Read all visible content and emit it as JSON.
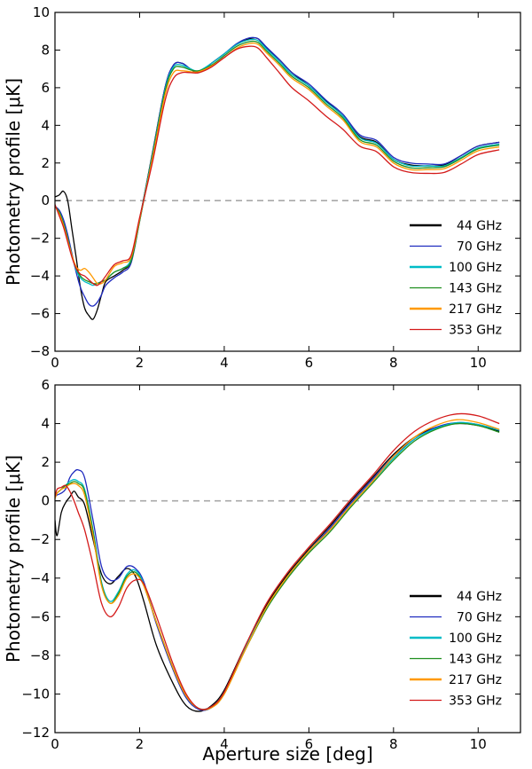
{
  "chart_data": [
    {
      "type": "line",
      "title": "",
      "xlabel": "",
      "ylabel": "Photometry profile [μK]",
      "xlim": [
        0,
        11
      ],
      "ylim": [
        -8,
        10
      ],
      "xticks": [
        "0",
        "2",
        "4",
        "6",
        "8",
        "10"
      ],
      "yticks": [
        "−8",
        "−6",
        "−4",
        "−2",
        "0",
        "2",
        "4",
        "6",
        "8",
        "10"
      ],
      "reference_line": {
        "y": 0,
        "style": "dashed"
      },
      "legend_position": "lower-right",
      "series": [
        {
          "name": "44 GHz",
          "color": "#000000",
          "x": [
            0,
            0.1,
            0.2,
            0.3,
            0.4,
            0.5,
            0.6,
            0.7,
            0.8,
            0.9,
            1.0,
            1.1,
            1.2,
            1.4,
            1.6,
            1.8,
            2.0,
            2.3,
            2.6,
            2.8,
            3.0,
            3.2,
            3.4,
            3.7,
            4.0,
            4.3,
            4.6,
            4.8,
            5.0,
            5.3,
            5.6,
            6.0,
            6.4,
            6.8,
            7.2,
            7.6,
            8.0,
            8.4,
            8.8,
            9.2,
            9.6,
            10.0,
            10.5
          ],
          "y": [
            0.2,
            0.3,
            0.5,
            0.0,
            -1.5,
            -3.0,
            -4.6,
            -5.7,
            -6.1,
            -6.3,
            -5.8,
            -5.0,
            -4.3,
            -4.0,
            -3.7,
            -3.2,
            -1.0,
            2.5,
            6.0,
            7.2,
            7.3,
            7.0,
            6.8,
            7.3,
            7.8,
            8.3,
            8.6,
            8.6,
            8.1,
            7.5,
            6.8,
            6.1,
            5.3,
            4.5,
            3.4,
            3.1,
            2.2,
            1.9,
            1.85,
            1.9,
            2.4,
            2.9,
            3.1
          ]
        },
        {
          "name": "70 GHz",
          "color": "#1f2bbf",
          "x": [
            0,
            0.1,
            0.2,
            0.3,
            0.4,
            0.5,
            0.6,
            0.7,
            0.8,
            0.9,
            1.0,
            1.1,
            1.2,
            1.4,
            1.6,
            1.8,
            2.0,
            2.3,
            2.6,
            2.8,
            3.0,
            3.2,
            3.4,
            3.7,
            4.0,
            4.3,
            4.6,
            4.8,
            5.0,
            5.3,
            5.6,
            6.0,
            6.4,
            6.8,
            7.2,
            7.6,
            8.0,
            8.4,
            8.8,
            9.2,
            9.6,
            10.0,
            10.5
          ],
          "y": [
            -0.3,
            -0.5,
            -1.0,
            -1.8,
            -2.8,
            -3.8,
            -4.6,
            -5.1,
            -5.5,
            -5.6,
            -5.4,
            -5.0,
            -4.5,
            -4.1,
            -3.8,
            -3.3,
            -1.1,
            2.4,
            6.0,
            7.2,
            7.3,
            7.0,
            6.85,
            7.3,
            7.8,
            8.35,
            8.65,
            8.6,
            8.15,
            7.5,
            6.8,
            6.2,
            5.35,
            4.6,
            3.5,
            3.2,
            2.3,
            2.0,
            1.95,
            1.95,
            2.4,
            2.9,
            3.1
          ]
        },
        {
          "name": "100 GHz",
          "color": "#00bcc7",
          "x": [
            0,
            0.1,
            0.2,
            0.3,
            0.4,
            0.5,
            0.6,
            0.7,
            0.8,
            0.9,
            1.0,
            1.1,
            1.2,
            1.4,
            1.6,
            1.8,
            2.0,
            2.3,
            2.6,
            2.8,
            3.0,
            3.2,
            3.4,
            3.7,
            4.0,
            4.3,
            4.6,
            4.8,
            5.0,
            5.3,
            5.6,
            6.0,
            6.4,
            6.8,
            7.2,
            7.6,
            8.0,
            8.4,
            8.8,
            9.2,
            9.6,
            10.0,
            10.5
          ],
          "y": [
            -0.3,
            -0.6,
            -1.2,
            -2.0,
            -2.9,
            -3.7,
            -4.1,
            -4.3,
            -4.4,
            -4.5,
            -4.4,
            -4.3,
            -4.2,
            -3.8,
            -3.6,
            -3.1,
            -1.0,
            2.4,
            5.9,
            7.1,
            7.2,
            7.0,
            6.9,
            7.3,
            7.8,
            8.3,
            8.55,
            8.5,
            8.05,
            7.4,
            6.7,
            6.1,
            5.25,
            4.5,
            3.35,
            3.05,
            2.2,
            1.85,
            1.85,
            1.85,
            2.3,
            2.8,
            3.0
          ]
        },
        {
          "name": "143 GHz",
          "color": "#1f8f1f",
          "x": [
            0,
            0.1,
            0.2,
            0.3,
            0.4,
            0.5,
            0.6,
            0.7,
            0.8,
            0.9,
            1.0,
            1.1,
            1.2,
            1.4,
            1.6,
            1.8,
            2.0,
            2.3,
            2.6,
            2.8,
            3.0,
            3.2,
            3.4,
            3.7,
            4.0,
            4.3,
            4.6,
            4.8,
            5.0,
            5.3,
            5.6,
            6.0,
            6.4,
            6.8,
            7.2,
            7.6,
            8.0,
            8.4,
            8.8,
            9.2,
            9.6,
            10.0,
            10.5
          ],
          "y": [
            -0.3,
            -0.6,
            -1.2,
            -2.0,
            -2.9,
            -3.6,
            -4.0,
            -4.2,
            -4.3,
            -4.4,
            -4.4,
            -4.3,
            -4.2,
            -3.8,
            -3.6,
            -3.2,
            -1.1,
            2.3,
            5.8,
            7.0,
            7.1,
            6.95,
            6.9,
            7.2,
            7.7,
            8.2,
            8.45,
            8.4,
            7.95,
            7.3,
            6.6,
            6.0,
            5.15,
            4.4,
            3.25,
            2.95,
            2.1,
            1.75,
            1.75,
            1.8,
            2.25,
            2.75,
            2.95
          ]
        },
        {
          "name": "217 GHz",
          "color": "#ff9900",
          "x": [
            0,
            0.1,
            0.2,
            0.3,
            0.4,
            0.5,
            0.6,
            0.7,
            0.8,
            0.9,
            1.0,
            1.1,
            1.2,
            1.4,
            1.6,
            1.8,
            2.0,
            2.3,
            2.6,
            2.8,
            3.0,
            3.2,
            3.4,
            3.7,
            4.0,
            4.3,
            4.6,
            4.8,
            5.0,
            5.3,
            5.6,
            6.0,
            6.4,
            6.8,
            7.2,
            7.6,
            8.0,
            8.4,
            8.8,
            9.2,
            9.6,
            10.0,
            10.5
          ],
          "y": [
            -0.3,
            -0.7,
            -1.3,
            -2.1,
            -2.9,
            -3.5,
            -3.7,
            -3.6,
            -3.8,
            -4.1,
            -4.4,
            -4.4,
            -4.2,
            -3.5,
            -3.3,
            -3.0,
            -1.0,
            2.2,
            5.6,
            6.8,
            6.9,
            6.85,
            6.85,
            7.15,
            7.6,
            8.1,
            8.35,
            8.3,
            7.85,
            7.2,
            6.5,
            5.9,
            5.05,
            4.3,
            3.15,
            2.85,
            2.0,
            1.65,
            1.65,
            1.7,
            2.15,
            2.65,
            2.85
          ]
        },
        {
          "name": "353 GHz",
          "color": "#d41a1a",
          "x": [
            0,
            0.1,
            0.2,
            0.3,
            0.4,
            0.5,
            0.6,
            0.7,
            0.8,
            0.9,
            1.0,
            1.1,
            1.2,
            1.4,
            1.6,
            1.8,
            2.0,
            2.3,
            2.6,
            2.8,
            3.0,
            3.2,
            3.4,
            3.7,
            4.0,
            4.3,
            4.6,
            4.8,
            5.0,
            5.3,
            5.6,
            6.0,
            6.4,
            6.8,
            7.2,
            7.6,
            8.0,
            8.4,
            8.8,
            9.2,
            9.6,
            10.0,
            10.5
          ],
          "y": [
            -0.2,
            -0.8,
            -1.4,
            -2.2,
            -3.0,
            -3.6,
            -3.9,
            -4.0,
            -4.2,
            -4.4,
            -4.5,
            -4.3,
            -4.0,
            -3.4,
            -3.2,
            -2.9,
            -0.9,
            2.0,
            5.3,
            6.5,
            6.8,
            6.8,
            6.8,
            7.1,
            7.6,
            8.05,
            8.2,
            8.1,
            7.6,
            6.8,
            6.0,
            5.3,
            4.5,
            3.8,
            2.9,
            2.6,
            1.8,
            1.5,
            1.45,
            1.5,
            1.95,
            2.45,
            2.7
          ]
        }
      ]
    },
    {
      "type": "line",
      "title": "",
      "xlabel": "Aperture size [deg]",
      "ylabel": "Photometry profile [μK]",
      "xlim": [
        0,
        11
      ],
      "ylim": [
        -12,
        6
      ],
      "xticks": [
        "0",
        "2",
        "4",
        "6",
        "8",
        "10"
      ],
      "yticks": [
        "−12",
        "−10",
        "−8",
        "−6",
        "−4",
        "−2",
        "0",
        "2",
        "4",
        "6"
      ],
      "reference_line": {
        "y": 0,
        "style": "dashed"
      },
      "legend_position": "lower-right",
      "series": [
        {
          "name": "44 GHz",
          "color": "#000000",
          "x": [
            0,
            0.05,
            0.15,
            0.25,
            0.35,
            0.45,
            0.55,
            0.7,
            0.9,
            1.1,
            1.3,
            1.5,
            1.7,
            1.9,
            2.1,
            2.4,
            2.8,
            3.1,
            3.4,
            3.7,
            4.0,
            4.5,
            5.0,
            5.5,
            6.0,
            6.5,
            7.0,
            7.5,
            8.0,
            8.5,
            9.0,
            9.5,
            10.0,
            10.5
          ],
          "y": [
            -1.0,
            -1.8,
            -0.6,
            -0.1,
            0.2,
            0.5,
            0.2,
            -0.2,
            -2.0,
            -3.8,
            -4.3,
            -3.9,
            -3.5,
            -3.9,
            -5.2,
            -7.5,
            -9.5,
            -10.6,
            -10.9,
            -10.6,
            -9.8,
            -7.5,
            -5.4,
            -3.8,
            -2.5,
            -1.3,
            0.0,
            1.2,
            2.4,
            3.3,
            3.8,
            4.0,
            3.9,
            3.6
          ]
        },
        {
          "name": "70 GHz",
          "color": "#1f2bbf",
          "x": [
            0,
            0.05,
            0.15,
            0.25,
            0.35,
            0.45,
            0.55,
            0.7,
            0.9,
            1.1,
            1.3,
            1.5,
            1.7,
            1.9,
            2.1,
            2.4,
            2.8,
            3.1,
            3.4,
            3.7,
            4.0,
            4.5,
            5.0,
            5.5,
            6.0,
            6.5,
            7.0,
            7.5,
            8.0,
            8.5,
            9.0,
            9.5,
            10.0,
            10.5
          ],
          "y": [
            0.2,
            0.3,
            0.4,
            0.6,
            1.2,
            1.5,
            1.6,
            1.2,
            -1.0,
            -3.4,
            -4.1,
            -4.0,
            -3.4,
            -3.5,
            -4.2,
            -6.4,
            -8.8,
            -10.2,
            -10.8,
            -10.7,
            -9.9,
            -7.6,
            -5.5,
            -3.9,
            -2.6,
            -1.4,
            -0.1,
            1.1,
            2.3,
            3.2,
            3.8,
            4.05,
            3.95,
            3.65
          ]
        },
        {
          "name": "100 GHz",
          "color": "#00bcc7",
          "x": [
            0,
            0.05,
            0.15,
            0.25,
            0.35,
            0.45,
            0.55,
            0.7,
            0.9,
            1.1,
            1.3,
            1.5,
            1.7,
            1.9,
            2.1,
            2.4,
            2.8,
            3.1,
            3.4,
            3.7,
            4.0,
            4.5,
            5.0,
            5.5,
            6.0,
            6.5,
            7.0,
            7.5,
            8.0,
            8.5,
            9.0,
            9.5,
            10.0,
            10.5
          ],
          "y": [
            0.2,
            0.4,
            0.6,
            0.8,
            1.0,
            1.1,
            1.0,
            0.6,
            -1.5,
            -4.2,
            -5.2,
            -4.7,
            -3.8,
            -3.6,
            -4.3,
            -6.3,
            -8.7,
            -10.1,
            -10.75,
            -10.65,
            -9.9,
            -7.6,
            -5.5,
            -3.9,
            -2.6,
            -1.5,
            -0.2,
            1.0,
            2.2,
            3.2,
            3.75,
            4.05,
            3.95,
            3.65
          ]
        },
        {
          "name": "143 GHz",
          "color": "#1f8f1f",
          "x": [
            0,
            0.05,
            0.15,
            0.25,
            0.35,
            0.45,
            0.55,
            0.7,
            0.9,
            1.1,
            1.3,
            1.5,
            1.7,
            1.9,
            2.1,
            2.4,
            2.8,
            3.1,
            3.4,
            3.7,
            4.0,
            4.5,
            5.0,
            5.5,
            6.0,
            6.5,
            7.0,
            7.5,
            8.0,
            8.5,
            9.0,
            9.5,
            10.0,
            10.5
          ],
          "y": [
            0.2,
            0.4,
            0.6,
            0.8,
            0.9,
            1.0,
            0.9,
            0.5,
            -1.6,
            -4.3,
            -5.3,
            -4.8,
            -3.9,
            -3.7,
            -4.4,
            -6.3,
            -8.7,
            -10.1,
            -10.75,
            -10.7,
            -10.0,
            -7.7,
            -5.6,
            -4.0,
            -2.7,
            -1.6,
            -0.3,
            0.9,
            2.1,
            3.1,
            3.7,
            4.0,
            3.9,
            3.55
          ]
        },
        {
          "name": "217 GHz",
          "color": "#ff9900",
          "x": [
            0,
            0.05,
            0.15,
            0.25,
            0.35,
            0.45,
            0.55,
            0.7,
            0.9,
            1.1,
            1.3,
            1.5,
            1.7,
            1.9,
            2.1,
            2.4,
            2.8,
            3.1,
            3.4,
            3.7,
            4.0,
            4.5,
            5.0,
            5.5,
            6.0,
            6.5,
            7.0,
            7.5,
            8.0,
            8.5,
            9.0,
            9.5,
            10.0,
            10.5
          ],
          "y": [
            0.1,
            0.4,
            0.6,
            0.7,
            0.85,
            0.9,
            0.8,
            0.3,
            -1.8,
            -4.4,
            -5.3,
            -4.9,
            -4.0,
            -3.8,
            -4.4,
            -6.3,
            -8.7,
            -10.1,
            -10.75,
            -10.7,
            -10.0,
            -7.7,
            -5.5,
            -3.9,
            -2.6,
            -1.5,
            -0.2,
            1.0,
            2.3,
            3.3,
            3.9,
            4.2,
            4.05,
            3.7
          ]
        },
        {
          "name": "353 GHz",
          "color": "#d41a1a",
          "x": [
            0,
            0.05,
            0.15,
            0.25,
            0.35,
            0.45,
            0.55,
            0.7,
            0.9,
            1.1,
            1.3,
            1.5,
            1.7,
            1.9,
            2.1,
            2.4,
            2.8,
            3.1,
            3.4,
            3.7,
            4.0,
            4.5,
            5.0,
            5.5,
            6.0,
            6.5,
            7.0,
            7.5,
            8.0,
            8.5,
            9.0,
            9.5,
            10.0,
            10.5
          ],
          "y": [
            0.2,
            0.6,
            0.7,
            0.8,
            0.5,
            0.0,
            -0.6,
            -1.5,
            -3.3,
            -5.3,
            -6.0,
            -5.5,
            -4.5,
            -4.1,
            -4.3,
            -6.0,
            -8.5,
            -10.0,
            -10.75,
            -10.65,
            -9.9,
            -7.5,
            -5.3,
            -3.7,
            -2.4,
            -1.2,
            0.1,
            1.3,
            2.6,
            3.6,
            4.2,
            4.5,
            4.4,
            4.0
          ]
        }
      ]
    }
  ]
}
